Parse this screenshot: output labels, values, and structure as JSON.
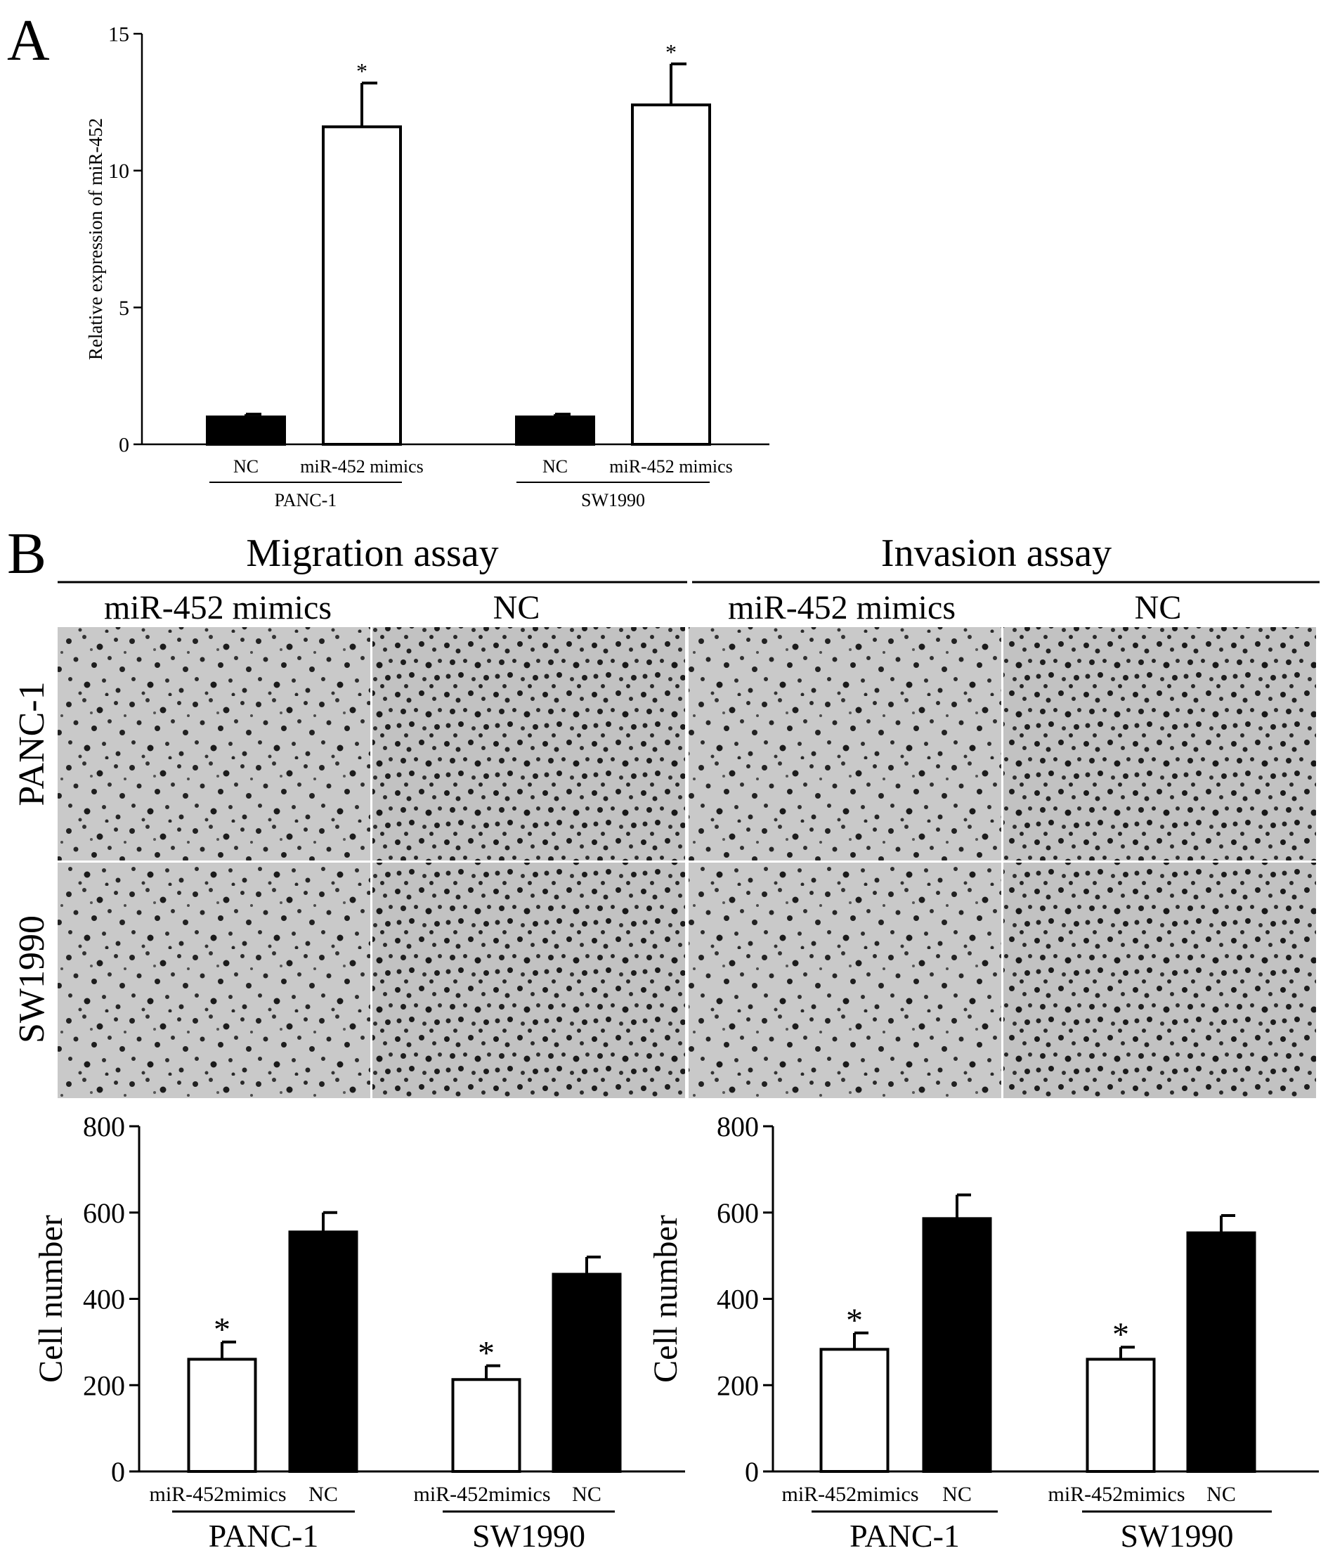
{
  "panel_a": {
    "letter": "A"
  },
  "panel_b": {
    "letter": "B",
    "assays": [
      "Migration assay",
      "Invasion assay"
    ],
    "column_labels": [
      "miR-452 mimics",
      "NC",
      "miR-452 mimics",
      "NC"
    ],
    "row_labels": [
      "PANC-1",
      "SW1990"
    ]
  },
  "colors": {
    "ink": "#000000",
    "background": "#ffffff",
    "micrograph_bg": "#c9c9c9",
    "cells": "#1e1e1e"
  },
  "chart_data": [
    {
      "id": "A",
      "type": "bar",
      "ylabel": "Relative expression of miR-452",
      "ylim": [
        0,
        15
      ],
      "yticks": [
        0,
        5,
        10,
        15
      ],
      "groups": [
        {
          "label": "PANC-1",
          "bars": [
            {
              "category": "NC",
              "value": 1.0,
              "error": 0.1,
              "fill": "black",
              "significant": false
            },
            {
              "category": "miR-452 mimics",
              "value": 11.6,
              "error": 1.6,
              "fill": "white",
              "significant": true
            }
          ]
        },
        {
          "label": "SW1990",
          "bars": [
            {
              "category": "NC",
              "value": 1.0,
              "error": 0.1,
              "fill": "black",
              "significant": false
            },
            {
              "category": "miR-452 mimics",
              "value": 12.4,
              "error": 1.5,
              "fill": "white",
              "significant": true
            }
          ]
        }
      ],
      "annotation": "*"
    },
    {
      "id": "B-migration",
      "type": "bar",
      "ylabel": "Cell number",
      "ylim": [
        0,
        800
      ],
      "yticks": [
        0,
        200,
        400,
        600,
        800
      ],
      "groups": [
        {
          "label": "PANC-1",
          "bars": [
            {
              "category": "miR-452mimics",
              "value": 260,
              "error": 40,
              "fill": "white",
              "significant": true
            },
            {
              "category": "NC",
              "value": 555,
              "error": 45,
              "fill": "black",
              "significant": false
            }
          ]
        },
        {
          "label": "SW1990",
          "bars": [
            {
              "category": "miR-452mimics",
              "value": 213,
              "error": 32,
              "fill": "white",
              "significant": true
            },
            {
              "category": "NC",
              "value": 457,
              "error": 40,
              "fill": "black",
              "significant": false
            }
          ]
        }
      ],
      "annotation": "*"
    },
    {
      "id": "B-invasion",
      "type": "bar",
      "ylabel": "Cell number",
      "ylim": [
        0,
        800
      ],
      "yticks": [
        0,
        200,
        400,
        600,
        800
      ],
      "groups": [
        {
          "label": "PANC-1",
          "bars": [
            {
              "category": "miR-452mimics",
              "value": 283,
              "error": 38,
              "fill": "white",
              "significant": true
            },
            {
              "category": "NC",
              "value": 586,
              "error": 55,
              "fill": "black",
              "significant": false
            }
          ]
        },
        {
          "label": "SW1990",
          "bars": [
            {
              "category": "miR-452mimics",
              "value": 260,
              "error": 28,
              "fill": "white",
              "significant": true
            },
            {
              "category": "NC",
              "value": 553,
              "error": 40,
              "fill": "black",
              "significant": false
            }
          ]
        }
      ],
      "annotation": "*"
    }
  ]
}
